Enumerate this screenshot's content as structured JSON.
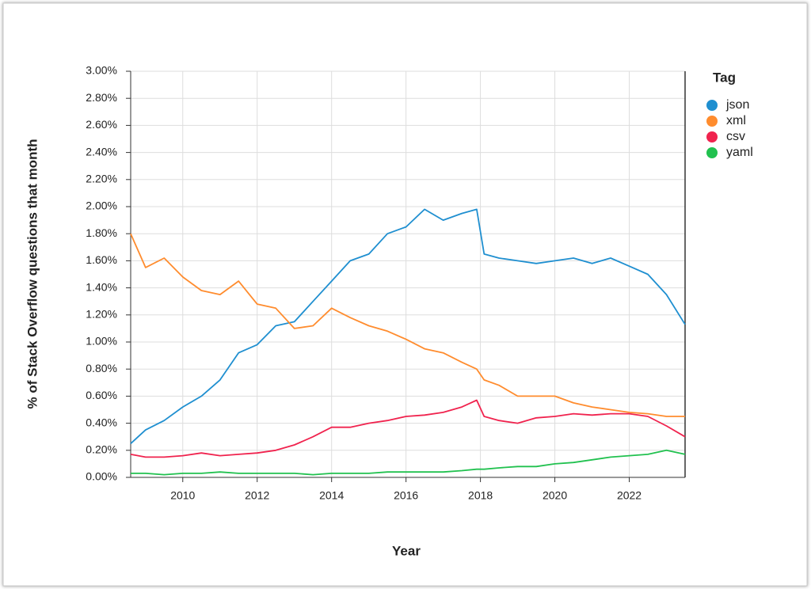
{
  "chart_data": {
    "type": "line",
    "x_label": "Year",
    "y_label": "% of Stack Overflow questions that month",
    "legend_title": "Tag",
    "legend_position": "right",
    "grid": true,
    "x": [
      2008.6,
      2009.0,
      2009.5,
      2010.0,
      2010.5,
      2011.0,
      2011.5,
      2012.0,
      2012.5,
      2013.0,
      2013.5,
      2014.0,
      2014.5,
      2015.0,
      2015.5,
      2016.0,
      2016.5,
      2017.0,
      2017.5,
      2017.9,
      2018.1,
      2018.5,
      2019.0,
      2019.5,
      2020.0,
      2020.5,
      2021.0,
      2021.5,
      2022.0,
      2022.5,
      2023.0,
      2023.5
    ],
    "series": [
      {
        "name": "json",
        "color": "#1f8fd0",
        "values": [
          0.25,
          0.35,
          0.42,
          0.52,
          0.6,
          0.72,
          0.92,
          0.98,
          1.12,
          1.15,
          1.3,
          1.45,
          1.6,
          1.65,
          1.8,
          1.85,
          1.98,
          1.9,
          1.95,
          1.98,
          1.65,
          1.62,
          1.6,
          1.58,
          1.6,
          1.62,
          1.58,
          1.62,
          1.56,
          1.5,
          1.35,
          1.13
        ]
      },
      {
        "name": "xml",
        "color": "#ff8c2e",
        "values": [
          1.8,
          1.55,
          1.62,
          1.48,
          1.38,
          1.35,
          1.45,
          1.28,
          1.25,
          1.1,
          1.12,
          1.25,
          1.18,
          1.12,
          1.08,
          1.02,
          0.95,
          0.92,
          0.85,
          0.8,
          0.72,
          0.68,
          0.6,
          0.6,
          0.6,
          0.55,
          0.52,
          0.5,
          0.48,
          0.47,
          0.45,
          0.45
        ]
      },
      {
        "name": "csv",
        "color": "#f0234e",
        "values": [
          0.17,
          0.15,
          0.15,
          0.16,
          0.18,
          0.16,
          0.17,
          0.18,
          0.2,
          0.24,
          0.3,
          0.37,
          0.37,
          0.4,
          0.42,
          0.45,
          0.46,
          0.48,
          0.52,
          0.57,
          0.45,
          0.42,
          0.4,
          0.44,
          0.45,
          0.47,
          0.46,
          0.47,
          0.47,
          0.45,
          0.38,
          0.3
        ]
      },
      {
        "name": "yaml",
        "color": "#21c14f",
        "values": [
          0.03,
          0.03,
          0.02,
          0.03,
          0.03,
          0.04,
          0.03,
          0.03,
          0.03,
          0.03,
          0.02,
          0.03,
          0.03,
          0.03,
          0.04,
          0.04,
          0.04,
          0.04,
          0.05,
          0.06,
          0.06,
          0.07,
          0.08,
          0.08,
          0.1,
          0.11,
          0.13,
          0.15,
          0.16,
          0.17,
          0.2,
          0.17
        ]
      }
    ],
    "xlim": [
      2008.6,
      2023.5
    ],
    "xticks": [
      2010,
      2012,
      2014,
      2016,
      2018,
      2020,
      2022
    ],
    "ylim": [
      0,
      3
    ],
    "yticks": [
      {
        "value": 0,
        "label": "0.00%"
      },
      {
        "value": 0.2,
        "label": "0.20%"
      },
      {
        "value": 0.4,
        "label": "0.40%"
      },
      {
        "value": 0.6,
        "label": "0.60%"
      },
      {
        "value": 0.8,
        "label": "0.80%"
      },
      {
        "value": 1.0,
        "label": "1.00%"
      },
      {
        "value": 1.2,
        "label": "1.20%"
      },
      {
        "value": 1.4,
        "label": "1.40%"
      },
      {
        "value": 1.6,
        "label": "1.60%"
      },
      {
        "value": 1.8,
        "label": "1.80%"
      },
      {
        "value": 2.0,
        "label": "2.00%"
      },
      {
        "value": 2.2,
        "label": "2.20%"
      },
      {
        "value": 2.4,
        "label": "2.40%"
      },
      {
        "value": 2.6,
        "label": "2.60%"
      },
      {
        "value": 2.8,
        "label": "2.80%"
      },
      {
        "value": 3.0,
        "label": "3.00%"
      }
    ]
  }
}
